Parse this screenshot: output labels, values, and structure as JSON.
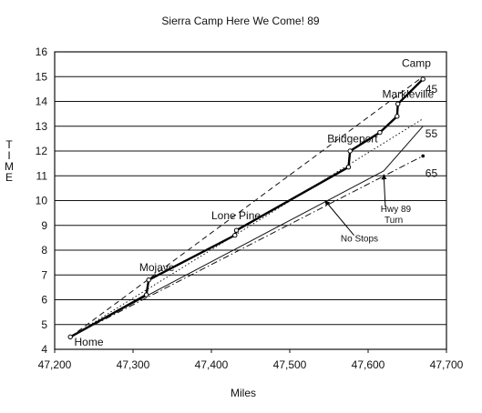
{
  "chart_data": {
    "type": "line",
    "title": "Sierra Camp Here We Come! 89",
    "xlabel": "Miles",
    "ylabel": "TIME",
    "xlim": [
      47200,
      47700
    ],
    "ylim": [
      4,
      16
    ],
    "x_ticks": [
      "47,200",
      "47,300",
      "47,400",
      "47,500",
      "47,600",
      "47,700"
    ],
    "y_ticks": [
      "4",
      "5",
      "6",
      "7",
      "8",
      "9",
      "10",
      "11",
      "12",
      "13",
      "14",
      "15",
      "16"
    ],
    "grid": "horizontal",
    "series": [
      {
        "name": "45",
        "style": "dashed",
        "x": [
          47220,
          47670
        ],
        "y": [
          4.5,
          15.0
        ]
      },
      {
        "name": "",
        "style": "actual",
        "x": [
          47220,
          47317,
          47320,
          47430,
          47432,
          47575,
          47577,
          47615,
          47637,
          47638,
          47670
        ],
        "y": [
          4.5,
          6.2,
          6.8,
          8.6,
          8.8,
          11.35,
          12.0,
          12.75,
          13.4,
          13.9,
          14.9
        ]
      },
      {
        "name": "55",
        "style": "solid-thin",
        "x": [
          47220,
          47320,
          47620,
          47670
        ],
        "y": [
          4.5,
          6.2,
          11.2,
          13.0
        ]
      },
      {
        "name": "",
        "style": "dotted",
        "x": [
          47220,
          47670
        ],
        "y": [
          4.5,
          13.3
        ]
      },
      {
        "name": "65",
        "style": "dash-dot",
        "x": [
          47220,
          47670
        ],
        "y": [
          4.5,
          11.8
        ]
      }
    ],
    "annotations": [
      {
        "text": "Home",
        "x": 47225,
        "y": 4.15
      },
      {
        "text": "Mojave",
        "x": 47308,
        "y": 7.15
      },
      {
        "text": "Lone Pine",
        "x": 47400,
        "y": 9.25
      },
      {
        "text": "Bridgeport",
        "x": 47548,
        "y": 12.35
      },
      {
        "text": "Markleville",
        "x": 47618,
        "y": 14.15
      },
      {
        "text": "Camp",
        "x": 47643,
        "y": 15.4
      },
      {
        "text": "45",
        "x": 47673,
        "y": 14.35
      },
      {
        "text": "55",
        "x": 47673,
        "y": 12.55
      },
      {
        "text": "65",
        "x": 47673,
        "y": 10.95
      },
      {
        "text": "Hwy 89",
        "x": 47616,
        "y": 9.55
      },
      {
        "text": "Turn",
        "x": 47621,
        "y": 9.1
      },
      {
        "text": "No Stops",
        "x": 47565,
        "y": 8.35
      }
    ]
  }
}
